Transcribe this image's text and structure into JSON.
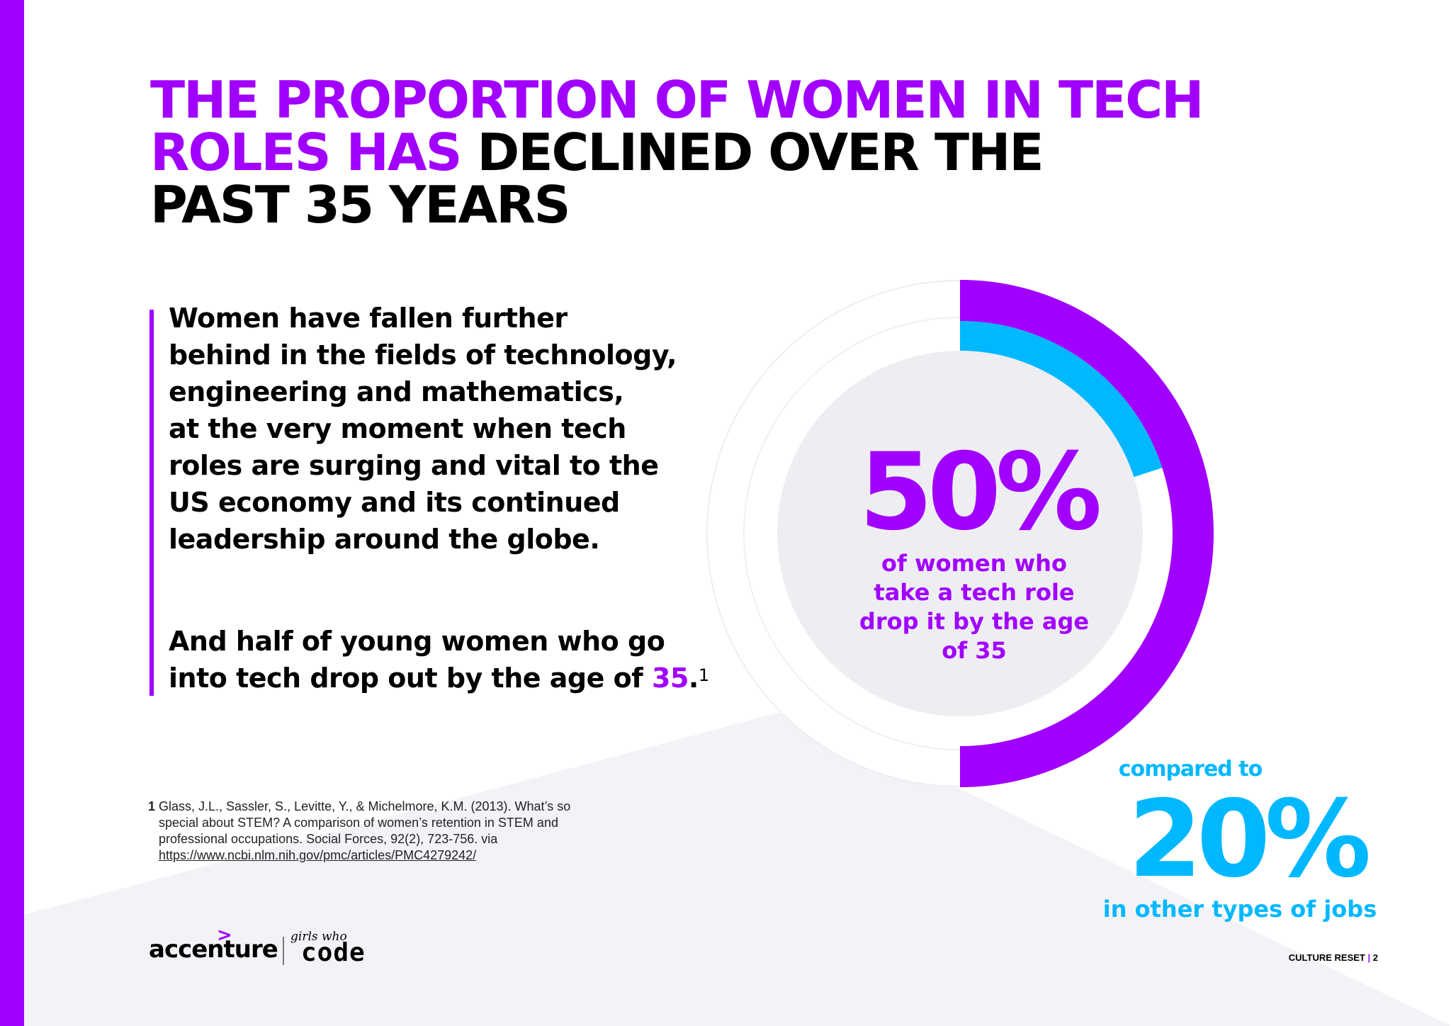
{
  "title": {
    "line1": "THE  PROPORTION OF WOMEN IN TECH",
    "line2_highlight": "ROLES HAS",
    "line2_rest": "DECLINED OVER THE",
    "line3": "PAST 35  YEARS"
  },
  "body": {
    "paragraph1": [
      "Women have fallen further",
      "behind in the fields of technology,",
      "engineering and mathematics,",
      "at the very moment when tech",
      "roles are surging and vital to the",
      "US economy and its continued",
      "leadership  around the globe."
    ],
    "paragraph2_line1": "And half of young women who go",
    "paragraph2_line2_prefix": "into tech drop out by the age of",
    "paragraph2_highlight": "35",
    "paragraph2_suffix": ".",
    "footnote_ref": "1"
  },
  "footnote": {
    "number": "1",
    "lines": [
      "Glass, J.L., Sassler, S., Levitte, Y., & Michelmore, K.M. (2013). What’s so",
      "special about STEM? A comparison of women’s retention in STEM and",
      "professional occupations. Social Forces, 92(2), 723-756. via"
    ],
    "link": "https://www.ncbi.nlm.nih.gov/pmc/articles/PMC4279242/"
  },
  "chart_data": {
    "type": "pie",
    "title": "",
    "series": [
      {
        "name": "women who take a tech role drop it by the age of 35",
        "value": 50,
        "color": "#a100ff"
      },
      {
        "name": "in other types of jobs",
        "value": 20,
        "color": "#00b8ff"
      }
    ],
    "max": 100
  },
  "stat_main": {
    "value": "50%",
    "caption": [
      "of women who",
      "take a tech role",
      "drop it by the age",
      "of 35"
    ]
  },
  "stat_compare": {
    "prefix": "compared to",
    "value": "20%",
    "caption": "in other types of jobs"
  },
  "logos": {
    "accenture_mark": ">",
    "accenture": "accenture",
    "gwc_small": "girls who",
    "gwc_code": "code"
  },
  "page_label": {
    "section": "CULTURE RESET",
    "separator": "|",
    "page": "2"
  },
  "colors": {
    "accent_purple": "#a100ff",
    "accent_blue": "#00b8ff",
    "text": "#000000"
  }
}
